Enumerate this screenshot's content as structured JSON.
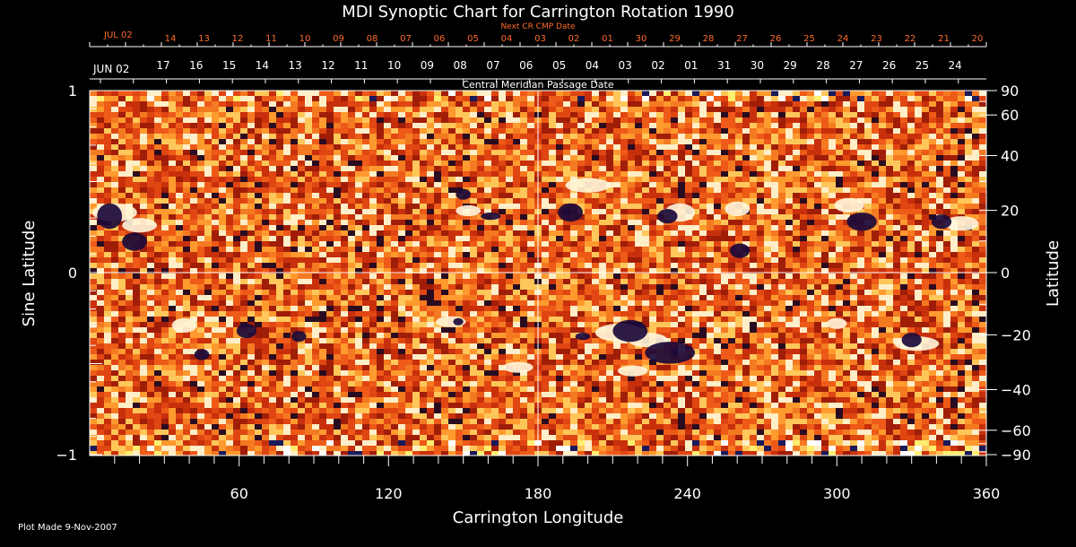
{
  "chart_data": {
    "type": "heatmap",
    "title": "MDI Synoptic Chart for Carrington Rotation 1990",
    "xlabel": "Carrington Longitude",
    "ylabel_left": "Sine Latitude",
    "ylabel_right": "Latitude",
    "xlim": [
      0,
      360
    ],
    "ylim": [
      -1,
      1
    ],
    "x_ticks": [
      60,
      120,
      180,
      240,
      300,
      360
    ],
    "y_ticks_left": [
      {
        "value": 1,
        "label": "1"
      },
      {
        "value": 0,
        "label": "0"
      },
      {
        "value": -1,
        "label": "−1"
      }
    ],
    "lat_ticks_right": [
      {
        "deg": 90,
        "label": "90"
      },
      {
        "deg": 60,
        "label": "60"
      },
      {
        "deg": 40,
        "label": "40"
      },
      {
        "deg": 20,
        "label": "20"
      },
      {
        "deg": 0,
        "label": "0"
      },
      {
        "deg": -20,
        "label": "−20"
      },
      {
        "deg": -40,
        "label": "−40"
      },
      {
        "deg": -60,
        "label": "−60"
      },
      {
        "deg": -90,
        "label": "−90"
      }
    ],
    "cmp_axis": {
      "label": "Central Meridian Passage Date",
      "start_label": "JUN 02",
      "labels": [
        "17",
        "16",
        "15",
        "14",
        "13",
        "12",
        "11",
        "10",
        "09",
        "08",
        "07",
        "06",
        "05",
        "04",
        "03",
        "02",
        "01",
        "31",
        "30",
        "29",
        "28",
        "27",
        "26",
        "25",
        "24"
      ]
    },
    "next_cr_axis": {
      "label": "Next CR CMP Date",
      "start_label": "JUL 02",
      "labels": [
        "14",
        "13",
        "12",
        "11",
        "10",
        "09",
        "08",
        "07",
        "06",
        "05",
        "04",
        "03",
        "02",
        "01",
        "30",
        "29",
        "28",
        "27",
        "26",
        "25",
        "24",
        "23",
        "22",
        "21",
        "20"
      ]
    },
    "features": {
      "strong_positive": [
        [
          10,
          0.33,
          9,
          0.05
        ],
        [
          20,
          0.26,
          7,
          0.04
        ],
        [
          152,
          0.34,
          5,
          0.03
        ],
        [
          200,
          0.48,
          9,
          0.04
        ],
        [
          237,
          0.33,
          6,
          0.05
        ],
        [
          305,
          0.37,
          6,
          0.04
        ],
        [
          350,
          0.27,
          7,
          0.04
        ],
        [
          145,
          -0.27,
          6,
          0.03
        ],
        [
          213,
          -0.33,
          10,
          0.05
        ],
        [
          224,
          -0.37,
          8,
          0.04
        ],
        [
          172,
          -0.52,
          6,
          0.03
        ],
        [
          218,
          -0.54,
          6,
          0.03
        ],
        [
          38,
          -0.29,
          5,
          0.04
        ],
        [
          332,
          -0.39,
          9,
          0.04
        ],
        [
          300,
          -0.28,
          4,
          0.03
        ],
        [
          260,
          0.35,
          5,
          0.04
        ]
      ],
      "strong_negative": [
        [
          8,
          0.31,
          5,
          0.07
        ],
        [
          18,
          0.17,
          5,
          0.05
        ],
        [
          161,
          0.31,
          4,
          0.02
        ],
        [
          193,
          0.33,
          5,
          0.05
        ],
        [
          232,
          0.31,
          4,
          0.04
        ],
        [
          261,
          0.12,
          4,
          0.04
        ],
        [
          310,
          0.28,
          6,
          0.05
        ],
        [
          342,
          0.28,
          4,
          0.04
        ],
        [
          150,
          0.43,
          3,
          0.03
        ],
        [
          84,
          -0.35,
          3,
          0.03
        ],
        [
          148,
          -0.27,
          2,
          0.02
        ],
        [
          198,
          -0.35,
          3,
          0.02
        ],
        [
          217,
          -0.32,
          7,
          0.06
        ],
        [
          233,
          -0.44,
          10,
          0.06
        ],
        [
          330,
          -0.37,
          4,
          0.04
        ],
        [
          63,
          -0.32,
          4,
          0.04
        ],
        [
          45,
          -0.45,
          3,
          0.03
        ]
      ]
    }
  },
  "footer": {
    "plot_made": "Plot Made  9-Nov-2007"
  }
}
